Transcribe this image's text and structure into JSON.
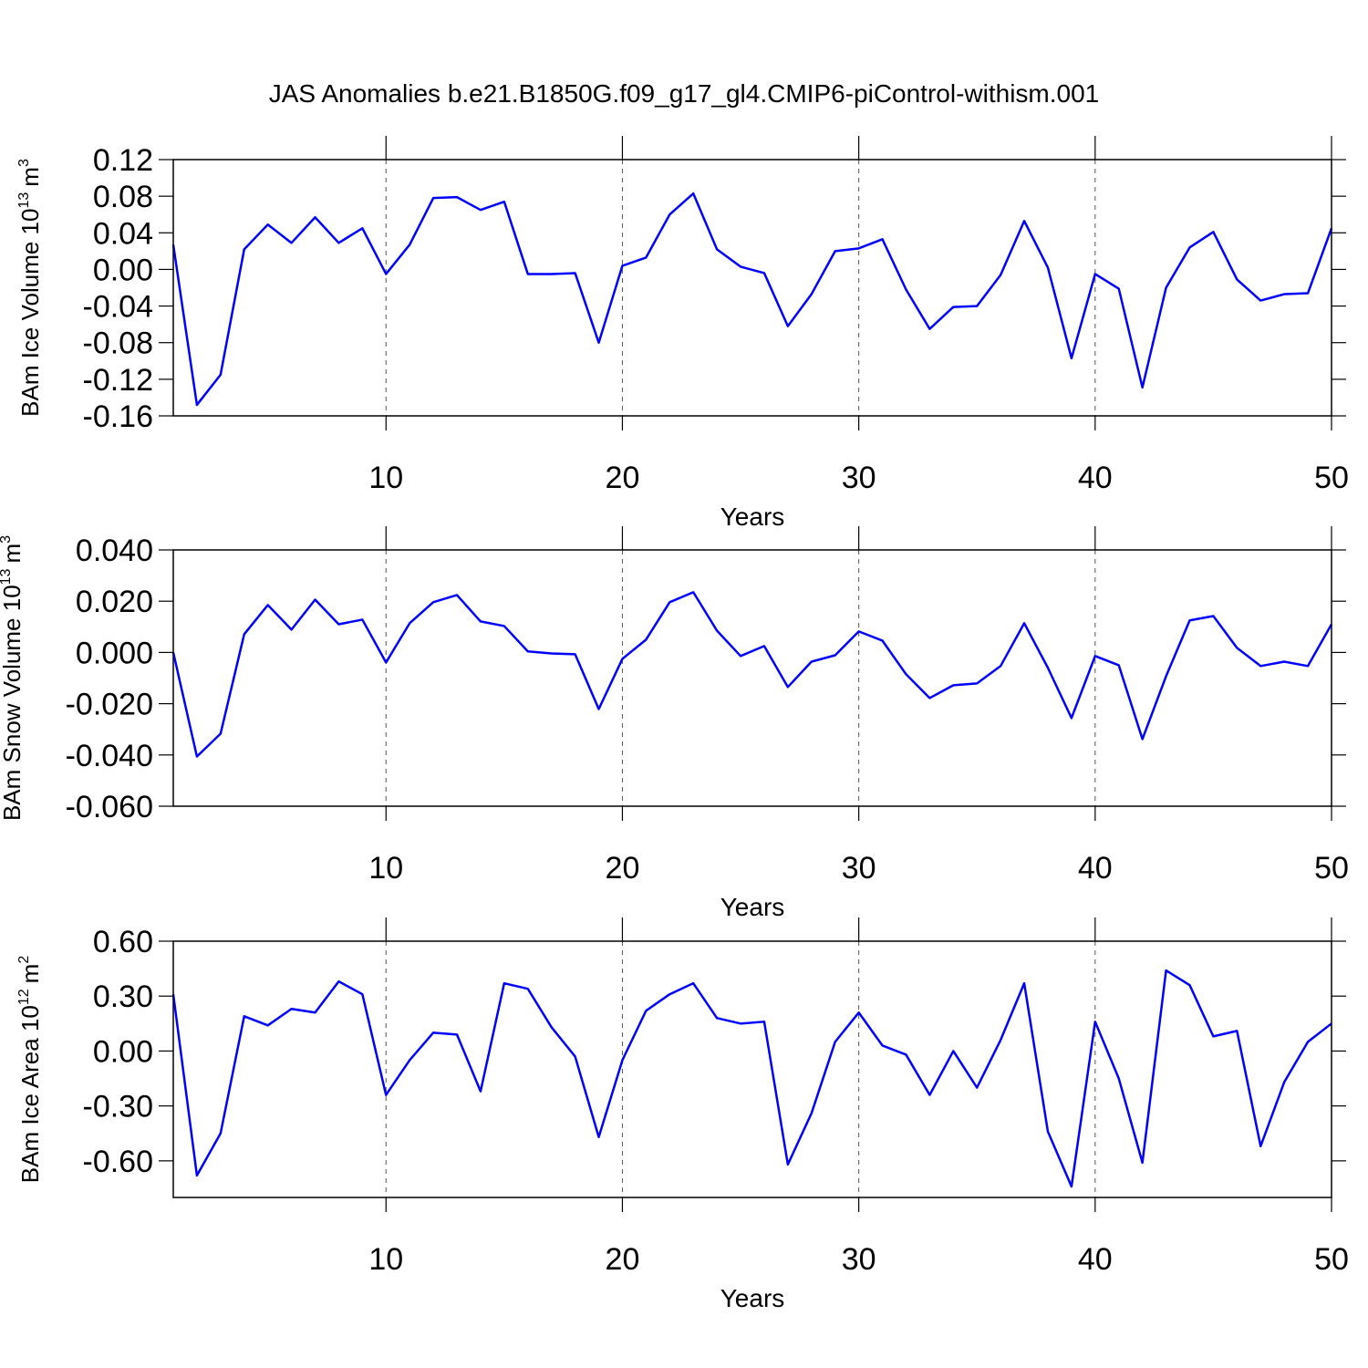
{
  "title": "JAS Anomalies b.e21.B1850G.f09_g17_gl4.CMIP6-piControl-withism.001",
  "chart_data": [
    {
      "type": "line",
      "xlabel": "Years",
      "ylabel": [
        "BAm Ice Volume 10",
        "13",
        "m",
        "3"
      ],
      "color": "#0000ff",
      "x": [
        1,
        2,
        3,
        4,
        5,
        6,
        7,
        8,
        9,
        10,
        11,
        12,
        13,
        14,
        15,
        16,
        17,
        18,
        19,
        20,
        21,
        22,
        23,
        24,
        25,
        26,
        27,
        28,
        29,
        30,
        31,
        32,
        33,
        34,
        35,
        36,
        37,
        38,
        39,
        40,
        41,
        42,
        43,
        44,
        45,
        46,
        47,
        48,
        49,
        50
      ],
      "values": [
        0.027,
        -0.148,
        -0.115,
        0.022,
        0.049,
        0.029,
        0.057,
        0.029,
        0.045,
        -0.005,
        0.027,
        0.078,
        0.079,
        0.065,
        0.074,
        -0.005,
        -0.005,
        -0.004,
        -0.08,
        0.004,
        0.013,
        0.06,
        0.083,
        0.022,
        0.003,
        -0.004,
        -0.062,
        -0.027,
        0.02,
        0.023,
        0.033,
        -0.022,
        -0.065,
        -0.041,
        -0.04,
        -0.006,
        0.053,
        0.002,
        -0.097,
        -0.005,
        -0.021,
        -0.129,
        -0.02,
        0.024,
        0.041,
        -0.011,
        -0.034,
        -0.027,
        -0.026,
        0.045
      ],
      "xlim": [
        1,
        50
      ],
      "xticks": [
        10,
        20,
        30,
        40,
        50
      ],
      "ylim": [
        -0.16,
        0.12
      ],
      "yticks": [
        0.12,
        0.08,
        0.04,
        {
          "value": 0,
          "label": "0.00"
        },
        -0.04,
        -0.08,
        -0.12,
        -0.16
      ],
      "grid": "x"
    },
    {
      "type": "line",
      "xlabel": "Years",
      "ylabel": [
        "BAm Snow Volume 10",
        "13",
        "m",
        "3"
      ],
      "color": "#0000ff",
      "x": [
        1,
        2,
        3,
        4,
        5,
        6,
        7,
        8,
        9,
        10,
        11,
        12,
        13,
        14,
        15,
        16,
        17,
        18,
        19,
        20,
        21,
        22,
        23,
        24,
        25,
        26,
        27,
        28,
        29,
        30,
        31,
        32,
        33,
        34,
        35,
        36,
        37,
        38,
        39,
        40,
        41,
        42,
        43,
        44,
        45,
        46,
        47,
        48,
        49,
        50
      ],
      "values": [
        0,
        -0.0406,
        -0.0317,
        0.0071,
        0.0185,
        0.0089,
        0.0206,
        0.011,
        0.0128,
        -0.0039,
        0.0114,
        0.0196,
        0.0224,
        0.0121,
        0.0103,
        0.0004,
        -0.0004,
        -0.0007,
        -0.0221,
        -0.0025,
        0.005,
        0.0196,
        0.0235,
        0.0085,
        -0.0014,
        0.0025,
        -0.0135,
        -0.0036,
        -0.0011,
        0.0082,
        0.0046,
        -0.0085,
        -0.0178,
        -0.0128,
        -0.0121,
        -0.0053,
        0.0114,
        -0.006,
        -0.0256,
        -0.0014,
        -0.005,
        -0.0338,
        -0.0093,
        0.0125,
        0.0142,
        0.0018,
        -0.0053,
        -0.0036,
        -0.0053,
        0.011
      ],
      "xlim": [
        1,
        50
      ],
      "xticks": [
        10,
        20,
        30,
        40,
        50
      ],
      "ylim": [
        -0.06,
        0.04
      ],
      "yticks": [
        {
          "value": 0.04,
          "label": "0.040"
        },
        {
          "value": 0.02,
          "label": "0.020"
        },
        {
          "value": 0,
          "label": "0.000"
        },
        {
          "value": -0.02,
          "label": "-0.020"
        },
        {
          "value": -0.04,
          "label": "-0.040"
        },
        {
          "value": -0.06,
          "label": "-0.060"
        }
      ],
      "grid": "x"
    },
    {
      "type": "line",
      "xlabel": "Years",
      "ylabel": [
        "BAm Ice Area 10",
        "12",
        "m",
        "2"
      ],
      "color": "#0000ff",
      "x": [
        1,
        2,
        3,
        4,
        5,
        6,
        7,
        8,
        9,
        10,
        11,
        12,
        13,
        14,
        15,
        16,
        17,
        18,
        19,
        20,
        21,
        22,
        23,
        24,
        25,
        26,
        27,
        28,
        29,
        30,
        31,
        32,
        33,
        34,
        35,
        36,
        37,
        38,
        39,
        40,
        41,
        42,
        43,
        44,
        45,
        46,
        47,
        48,
        49,
        50
      ],
      "values": [
        0.31,
        -0.68,
        -0.45,
        0.19,
        0.14,
        0.23,
        0.21,
        0.38,
        0.31,
        -0.24,
        -0.05,
        0.1,
        0.09,
        -0.22,
        0.37,
        0.34,
        0.13,
        -0.03,
        -0.47,
        -0.05,
        0.22,
        0.31,
        0.37,
        0.18,
        0.15,
        0.16,
        -0.62,
        -0.34,
        0.05,
        0.21,
        0.03,
        -0.02,
        -0.24,
        0.0,
        -0.2,
        0.06,
        0.37,
        -0.44,
        -0.74,
        0.16,
        -0.15,
        -0.61,
        0.44,
        0.36,
        0.08,
        0.11,
        -0.52,
        -0.17,
        0.05,
        0.15
      ],
      "xlim": [
        1,
        50
      ],
      "xticks": [
        10,
        20,
        30,
        40,
        50
      ],
      "ylim": [
        -0.8,
        0.6
      ],
      "yticks": [
        {
          "value": 0.6,
          "label": "0.60"
        },
        {
          "value": 0.3,
          "label": "0.30"
        },
        {
          "value": 0,
          "label": "0.00"
        },
        {
          "value": -0.3,
          "label": "-0.30"
        },
        {
          "value": -0.6,
          "label": "-0.60"
        }
      ],
      "grid": "x"
    }
  ]
}
